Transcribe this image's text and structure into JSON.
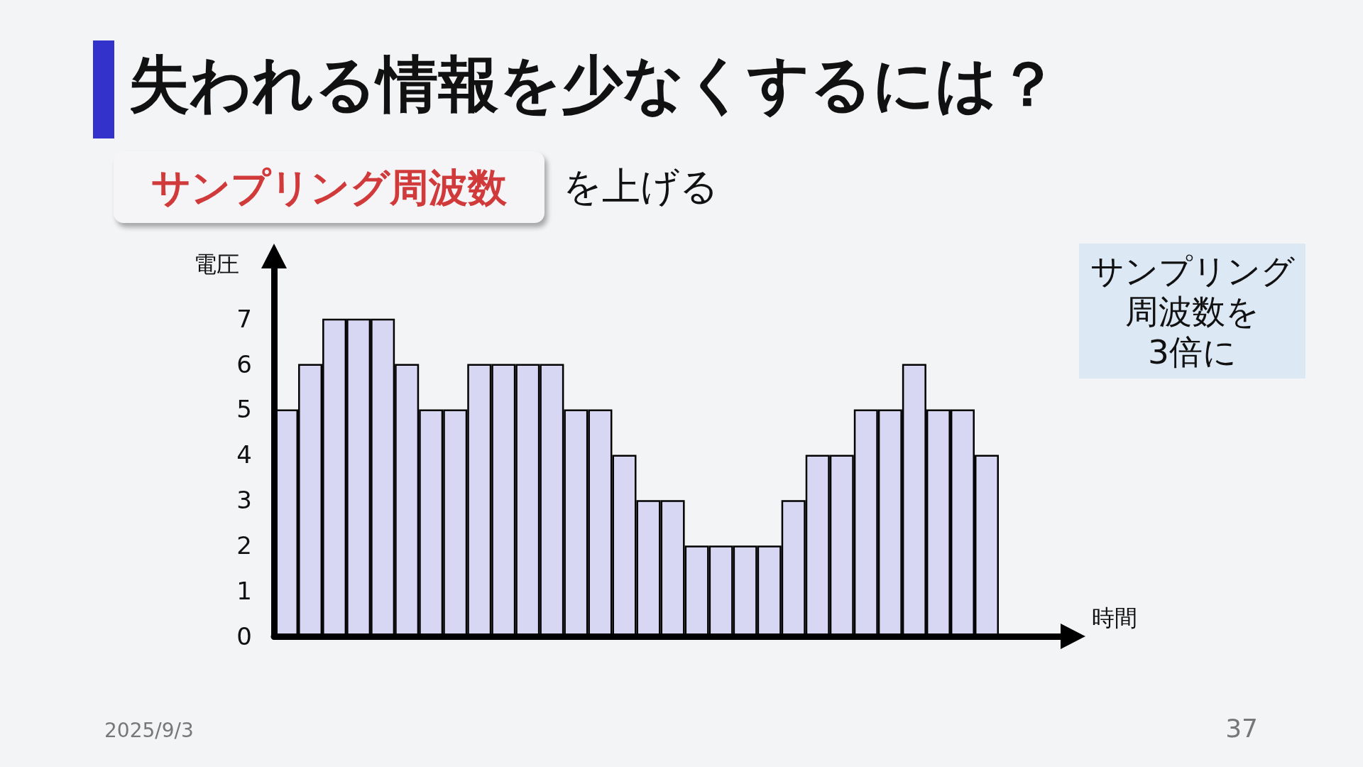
{
  "chart_data": {
    "type": "bar",
    "title": "失われる情報を少なくするには？",
    "subtitle": "サンプリング周波数",
    "xlabel": "時間",
    "ylabel": "電圧",
    "categories": [
      null,
      null,
      null,
      null,
      null,
      null,
      null,
      null,
      null,
      null,
      null,
      null,
      null,
      null,
      null,
      null,
      null,
      null,
      null,
      null,
      null,
      null,
      null,
      null,
      null,
      null,
      null,
      null,
      null,
      null
    ],
    "values": [
      5,
      6,
      7,
      7,
      7,
      6,
      5,
      5,
      6,
      6,
      6,
      6,
      5,
      5,
      4,
      3,
      3,
      2,
      2,
      2,
      2,
      3,
      4,
      4,
      5,
      5,
      6,
      5,
      5,
      4
    ],
    "color": "#d7d7f4",
    "ylim": [
      0,
      8.2
    ],
    "yticks": [
      0,
      1,
      2,
      3,
      4,
      5,
      6,
      7
    ],
    "annotations": [
      "を上げる",
      "サンプリング周波数を3倍に",
      "2025/9/3",
      "37"
    ]
  }
}
